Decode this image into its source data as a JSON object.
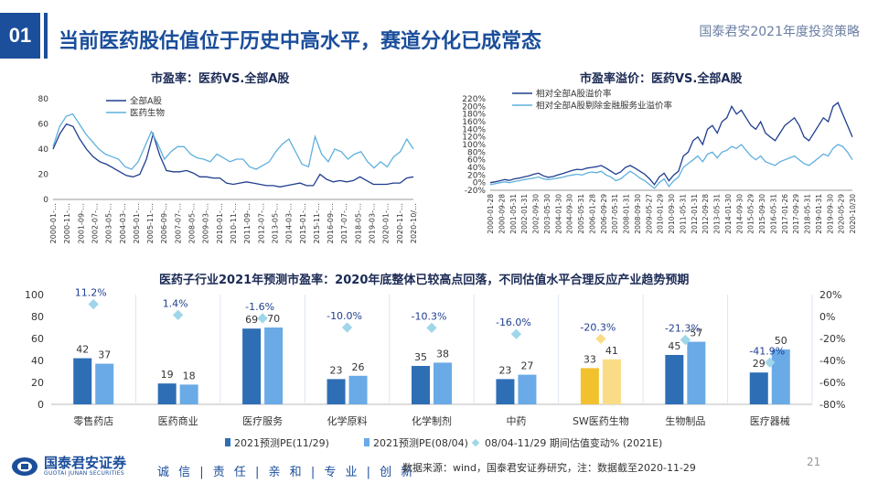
{
  "header": {
    "section_number": "01",
    "title": "当前医药股估值位于历史中高水平，赛道分化已成常态",
    "top_right": "国泰君安2021年度投资策略"
  },
  "footer": {
    "logo_cn": "国泰君安证券",
    "logo_en": "GUOTAI JUNAN SECURITIES",
    "slogan": "诚 信 | 责 任 | 亲 和 | 专 业 | 创 新",
    "source": "数据来源：wind，国泰君安证券研究，注：数据截至2020-11-29",
    "page": "21"
  },
  "colors": {
    "dark_blue": "#1f3e8f",
    "light_blue": "#5fb0dc",
    "bar_dark": "#2e6eb5",
    "bar_light": "#6aaae6",
    "bar_gold": "#f2c12e",
    "bar_gold_light": "#fbdc86",
    "diamond": "#9fd6ea"
  },
  "chart_data": [
    {
      "type": "line",
      "title": "市盈率：医药VS.全部A股",
      "ylim": [
        0,
        80
      ],
      "yticks": [
        0,
        20,
        40,
        60,
        80
      ],
      "xticks": [
        "2000-01-…",
        "2000-11-…",
        "2001-09-…",
        "2002-07-…",
        "2003-05-…",
        "2004-03-…",
        "2005-01-…",
        "2005-11-…",
        "2006-09-…",
        "2007-07-…",
        "2008-05-…",
        "2009-03-…",
        "2010-01-…",
        "2010-11-…",
        "2011-09-…",
        "2012-07-…",
        "2013-05-…",
        "2014-03-…",
        "2015-01-…",
        "2015-11-…",
        "2016-09-…",
        "2017-07-…",
        "2018-05-…",
        "2019-03-…",
        "2020-01-…",
        "2020-11-…",
        "2020-10/…"
      ],
      "series": [
        {
          "name": "全部A股",
          "color": "#1f3e8f",
          "values": [
            40,
            52,
            60,
            58,
            48,
            40,
            34,
            30,
            28,
            25,
            22,
            19,
            18,
            20,
            32,
            52,
            35,
            23,
            22,
            22,
            23,
            21,
            18,
            18,
            17,
            17,
            13,
            12,
            13,
            14,
            13,
            12,
            11,
            11,
            10,
            11,
            12,
            13,
            11,
            11,
            20,
            16,
            14,
            15,
            14,
            15,
            18,
            15,
            12,
            12,
            12,
            13,
            13,
            17,
            18
          ]
        },
        {
          "name": "医药生物",
          "color": "#5fb0dc",
          "values": [
            42,
            58,
            66,
            68,
            60,
            52,
            46,
            40,
            36,
            34,
            32,
            26,
            24,
            30,
            42,
            54,
            44,
            32,
            38,
            42,
            42,
            36,
            33,
            32,
            30,
            36,
            33,
            30,
            32,
            32,
            26,
            24,
            27,
            30,
            38,
            44,
            48,
            38,
            28,
            26,
            50,
            36,
            30,
            40,
            38,
            32,
            36,
            38,
            30,
            25,
            30,
            26,
            34,
            38,
            48,
            40
          ]
        }
      ]
    },
    {
      "type": "line",
      "title": "市盈率溢价：医药VS.全部A股",
      "ylim": [
        -20,
        220
      ],
      "yticks": [
        "-20%",
        "0%",
        "20%",
        "40%",
        "60%",
        "80%",
        "100%",
        "120%",
        "140%",
        "160%",
        "180%",
        "200%",
        "220%"
      ],
      "ytick_values": [
        -20,
        0,
        20,
        40,
        60,
        80,
        100,
        120,
        140,
        160,
        180,
        200,
        220
      ],
      "xticks": [
        "2000-01-28",
        "2000-09-28",
        "2001-05-31",
        "2002-01-31",
        "2002-09-30",
        "2003-05-30",
        "2004-01-30",
        "2004-09-30",
        "2005-05-31",
        "2006-01-28",
        "2006-09-29",
        "2007-05-31",
        "2008-01-31",
        "2008-09-30",
        "2009-05-27",
        "2010-01-29",
        "2010-09-30",
        "2011-05-31",
        "2012-01-31",
        "2012-09-28",
        "2013-05-31",
        "2014-01-30",
        "2014-09-30",
        "2015-05-29",
        "2015-09-30",
        "2016-05-31",
        "2017-01-26",
        "2017-09-29",
        "2018-05-31",
        "2019-01-31",
        "2019-09-30",
        "2020-05-29",
        "2020-10/30"
      ],
      "series": [
        {
          "name": "相对全部A股溢价率",
          "color": "#1f3e8f",
          "values": [
            0,
            2,
            5,
            8,
            6,
            10,
            12,
            15,
            18,
            22,
            25,
            18,
            14,
            16,
            20,
            24,
            28,
            32,
            35,
            34,
            38,
            40,
            42,
            45,
            38,
            30,
            22,
            28,
            40,
            45,
            38,
            30,
            22,
            10,
            -5,
            15,
            25,
            5,
            20,
            30,
            70,
            80,
            110,
            120,
            100,
            140,
            150,
            130,
            160,
            170,
            200,
            180,
            190,
            170,
            150,
            140,
            160,
            130,
            120,
            110,
            130,
            150,
            160,
            170,
            150,
            120,
            110,
            130,
            150,
            170,
            160,
            200,
            210,
            180,
            150,
            120
          ]
        },
        {
          "name": "相对全部A股剔除金融服务业溢价率",
          "color": "#5fb0dc",
          "values": [
            -5,
            -3,
            0,
            2,
            0,
            3,
            5,
            8,
            10,
            12,
            15,
            10,
            8,
            10,
            12,
            14,
            18,
            20,
            22,
            20,
            25,
            28,
            26,
            30,
            20,
            15,
            5,
            10,
            20,
            30,
            22,
            12,
            5,
            -5,
            -15,
            0,
            10,
            -10,
            5,
            15,
            40,
            50,
            60,
            70,
            55,
            75,
            80,
            65,
            80,
            85,
            95,
            90,
            100,
            85,
            70,
            60,
            70,
            55,
            50,
            45,
            55,
            60,
            65,
            70,
            60,
            50,
            45,
            55,
            65,
            75,
            70,
            90,
            100,
            95,
            80,
            60
          ]
        }
      ]
    },
    {
      "type": "bar",
      "title": "医药子行业2021年预测市盈率：2020年底整体已较高点回落，不同估值水平合理反应产业趋势预期",
      "categories": [
        "零售药店",
        "医药商业",
        "医疗服务",
        "化学原料",
        "化学制剂",
        "中药",
        "SW医药生物",
        "生物制品",
        "医疗器械"
      ],
      "ylim": [
        0,
        100
      ],
      "yticks": [
        0,
        20,
        40,
        60,
        80,
        100
      ],
      "y2lim": [
        -80,
        20
      ],
      "y2ticks": [
        "-80%",
        "-60%",
        "-40%",
        "-20%",
        "0%",
        "20%"
      ],
      "y2tick_values": [
        -80,
        -60,
        -40,
        -20,
        0,
        20
      ],
      "series": [
        {
          "name": "2021预测PE(11/29)",
          "values": [
            42,
            19,
            69,
            23,
            35,
            23,
            33,
            45,
            29
          ]
        },
        {
          "name": "2021预测PE(08/04)",
          "values": [
            37,
            18,
            70,
            26,
            38,
            27,
            41,
            57,
            50
          ]
        },
        {
          "name": "08/04-11/29 期间估值变动% (2021E)",
          "values": [
            11.2,
            1.4,
            -1.6,
            -10.0,
            -10.3,
            -16.0,
            -20.3,
            -21.3,
            -41.9
          ],
          "labels": [
            "11.2%",
            "1.4%",
            "-1.6%",
            "-10.0%",
            "-10.3%",
            "-16.0%",
            "-20.3%",
            "-21.3%",
            "-41.9%"
          ]
        }
      ],
      "pe1_labels": [
        "42",
        "19",
        "69",
        "23",
        "35",
        "23",
        "33",
        "45",
        "29"
      ],
      "pe2_labels": [
        "37",
        "18",
        "70",
        "26",
        "38",
        "27",
        "41",
        "57",
        "50"
      ]
    }
  ]
}
